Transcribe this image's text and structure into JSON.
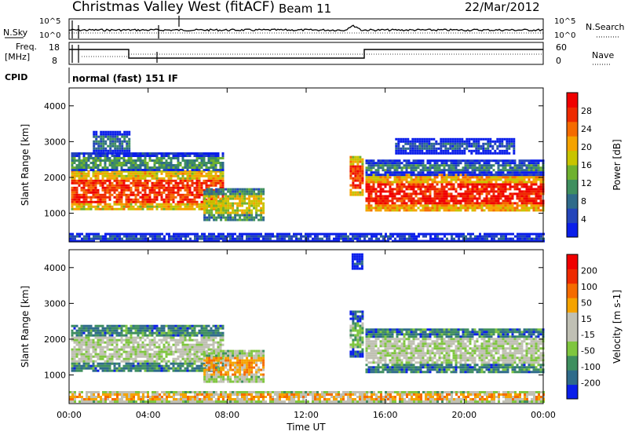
{
  "header": {
    "title": "Christmas Valley West (fitACF)",
    "beam": "Beam 11",
    "date": "22/Mar/2012"
  },
  "top_panels": {
    "nsky_label": "N.Sky",
    "nsearch_label": "N.Search",
    "noise_ticks": [
      "10^5",
      "10^0"
    ],
    "freq_label": "Freq.",
    "freq_units": "[MHz]",
    "freq_ticks": [
      "18",
      "8"
    ],
    "nave_label": "Nave",
    "nave_ticks": [
      "60",
      "0"
    ],
    "cpid_label": "CPID",
    "cpid_text": "normal (fast) 151 IF"
  },
  "colors": {
    "power_scale": [
      "#0a1eea",
      "#2445ba",
      "#2f6b8a",
      "#3f8f5f",
      "#6fb12f",
      "#c8c400",
      "#f5a300",
      "#f56b00",
      "#ee2a00",
      "#f00000"
    ],
    "velocity_scale": [
      "#0a1eea",
      "#2f6b8a",
      "#3f8f5f",
      "#7fc63f",
      "#c0c0b4",
      "#c0c0b4",
      "#f5a300",
      "#f56b00",
      "#ee2a00",
      "#f00000"
    ]
  },
  "chart_data": [
    {
      "type": "heatmap",
      "panel": "power",
      "ylabel": "Slant Range [km]",
      "yticks": [
        "1000",
        "2000",
        "3000",
        "4000"
      ],
      "ylim": [
        200,
        4500
      ],
      "xlim": [
        0,
        24
      ],
      "colorbar_label": "Power [dB]",
      "colorbar_ticks": [
        "4",
        "8",
        "12",
        "16",
        "20",
        "24",
        "28"
      ],
      "regions": [
        {
          "x0": 0.1,
          "x1": 7.8,
          "y0": 1100,
          "y1": 2200,
          "level": 0.85
        },
        {
          "x0": 0.1,
          "x1": 7.8,
          "y0": 2200,
          "y1": 2700,
          "level": 0.35
        },
        {
          "x0": 1.2,
          "x1": 3.0,
          "y0": 2700,
          "y1": 3300,
          "level": 0.25
        },
        {
          "x0": 6.8,
          "x1": 9.8,
          "y0": 800,
          "y1": 1700,
          "level": 0.55
        },
        {
          "x0": 14.2,
          "x1": 14.9,
          "y0": 1500,
          "y1": 2600,
          "level": 0.85
        },
        {
          "x0": 15.0,
          "x1": 24.0,
          "y0": 1100,
          "y1": 2100,
          "level": 0.9
        },
        {
          "x0": 15.0,
          "x1": 24.0,
          "y0": 2100,
          "y1": 2500,
          "level": 0.3
        },
        {
          "x0": 16.5,
          "x1": 22.5,
          "y0": 2700,
          "y1": 3100,
          "level": 0.2
        },
        {
          "x0": 0.0,
          "x1": 24.0,
          "y0": 250,
          "y1": 450,
          "level": 0.15
        }
      ]
    },
    {
      "type": "heatmap",
      "panel": "velocity",
      "ylabel": "Slant Range [km]",
      "yticks": [
        "1000",
        "2000",
        "3000",
        "4000"
      ],
      "ylim": [
        200,
        4500
      ],
      "xlim": [
        0,
        24
      ],
      "xticks": [
        "00:00",
        "04:00",
        "08:00",
        "12:00",
        "16:00",
        "20:00",
        "00:00"
      ],
      "xlabel": "Time UT",
      "colorbar_label": "Velocity [m s-1]",
      "colorbar_ticks": [
        "200",
        "100",
        "50",
        "15",
        "-15",
        "-50",
        "-100",
        "-200"
      ],
      "regions": [
        {
          "x0": 0.1,
          "x1": 7.8,
          "y0": 1100,
          "y1": 2400,
          "level": 0.45
        },
        {
          "x0": 6.8,
          "x1": 9.8,
          "y0": 800,
          "y1": 1700,
          "level": 0.65
        },
        {
          "x0": 14.2,
          "x1": 14.9,
          "y0": 1500,
          "y1": 2800,
          "level": 0.35
        },
        {
          "x0": 15.0,
          "x1": 24.0,
          "y0": 1100,
          "y1": 2300,
          "level": 0.45
        },
        {
          "x0": 0.0,
          "x1": 24.0,
          "y0": 250,
          "y1": 550,
          "level": 0.65
        },
        {
          "x0": 14.3,
          "x1": 14.8,
          "y0": 4000,
          "y1": 4400,
          "level": 0.05
        }
      ]
    }
  ]
}
